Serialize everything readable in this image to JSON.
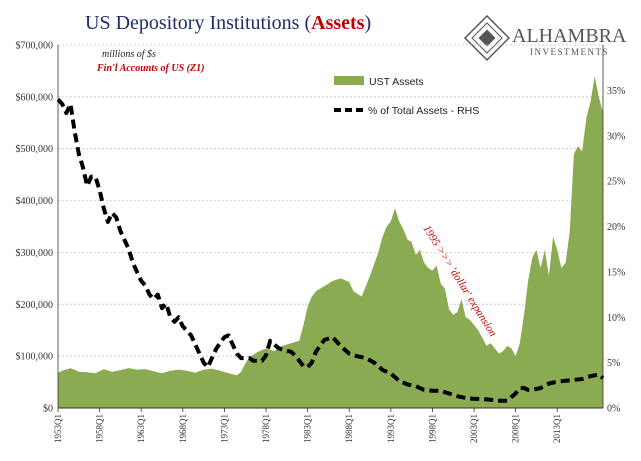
{
  "title": {
    "prefix": "US Depository Institutions (",
    "highlight": "Assets",
    "suffix": ")"
  },
  "brand": {
    "name": "ALHAMBRA",
    "sub": "INVESTMENTS"
  },
  "notes": {
    "units": "millions of $s",
    "source": "Fin'l Accounts of US (Z1)"
  },
  "annotation": "1995 >>> 'dollar' expansion",
  "colors": {
    "area": "#8bab52",
    "line": "#000000",
    "title": "#1f2d6b",
    "accent": "#c00000"
  },
  "chart_data": {
    "type": "area",
    "y_left": {
      "ticks": [
        "$0",
        "$100,000",
        "$200,000",
        "$300,000",
        "$400,000",
        "$500,000",
        "$600,000",
        "$700,000"
      ],
      "lim": [
        0,
        700000
      ]
    },
    "y_right": {
      "ticks": [
        "0%",
        "5%",
        "10%",
        "15%",
        "20%",
        "25%",
        "30%",
        "35%"
      ],
      "lim": [
        0,
        0.4
      ]
    },
    "x_ticks": [
      "1953Q1",
      "1958Q1",
      "1963Q1",
      "1968Q1",
      "1973Q1",
      "1978Q1",
      "1983Q1",
      "1988Q1",
      "1993Q1",
      "1998Q1",
      "2003Q1",
      "2008Q1",
      "2013Q1"
    ],
    "x_range": [
      1953.0,
      2018.5
    ],
    "grid": true,
    "legend_position": "top-right",
    "series": [
      {
        "name": "UST Assets",
        "axis": "left",
        "style": "area",
        "x": [
          1953.0,
          1953.5,
          1954.5,
          1955.5,
          1956.5,
          1957.5,
          1958.5,
          1959.5,
          1960.5,
          1961.5,
          1962.5,
          1963.5,
          1964.5,
          1965.5,
          1966.5,
          1967.5,
          1968.5,
          1969.5,
          1970.5,
          1971.5,
          1972.5,
          1973.5,
          1974.5,
          1975.0,
          1975.5,
          1976.0,
          1977.0,
          1978.0,
          1979.0,
          1980.0,
          1981.0,
          1982.0,
          1982.5,
          1983.0,
          1983.5,
          1984.0,
          1985.0,
          1986.0,
          1987.0,
          1988.0,
          1988.5,
          1989.5,
          1990.5,
          1991.5,
          1992.0,
          1992.5,
          1993.0,
          1993.5,
          1994.0,
          1994.5,
          1995.0,
          1995.5,
          1996.0,
          1996.5,
          1997.0,
          1997.5,
          1998.0,
          1998.5,
          1999.0,
          1999.5,
          2000.0,
          2000.5,
          2001.0,
          2001.5,
          2002.0,
          2002.5,
          2003.0,
          2003.5,
          2004.0,
          2004.5,
          2005.0,
          2005.5,
          2006.0,
          2006.5,
          2007.0,
          2007.5,
          2008.0,
          2008.5,
          2009.0,
          2009.5,
          2010.0,
          2010.5,
          2011.0,
          2011.5,
          2012.0,
          2012.5,
          2013.0,
          2013.5,
          2014.0,
          2014.5,
          2015.0,
          2015.5,
          2016.0,
          2016.5,
          2017.0,
          2017.5,
          2018.0,
          2018.5
        ],
        "values": [
          68000,
          72000,
          77000,
          70000,
          69000,
          67000,
          75000,
          70000,
          73000,
          77000,
          74000,
          75000,
          71000,
          67000,
          72000,
          74000,
          72000,
          68000,
          74000,
          76000,
          72000,
          67000,
          63000,
          70000,
          85000,
          98000,
          108000,
          115000,
          110000,
          120000,
          125000,
          130000,
          160000,
          195000,
          215000,
          225000,
          235000,
          245000,
          250000,
          243000,
          225000,
          215000,
          255000,
          300000,
          330000,
          350000,
          360000,
          385000,
          360000,
          345000,
          325000,
          320000,
          295000,
          305000,
          280000,
          270000,
          265000,
          275000,
          240000,
          230000,
          190000,
          180000,
          185000,
          210000,
          175000,
          170000,
          160000,
          150000,
          135000,
          120000,
          125000,
          115000,
          105000,
          110000,
          120000,
          115000,
          100000,
          125000,
          180000,
          245000,
          290000,
          305000,
          270000,
          305000,
          255000,
          330000,
          305000,
          270000,
          280000,
          340000,
          490000,
          505000,
          495000,
          560000,
          590000,
          640000,
          600000,
          570000
        ]
      },
      {
        "name": "% of Total Assets - RHS",
        "axis": "right",
        "style": "dashed",
        "x": [
          1953.0,
          1953.5,
          1954.0,
          1954.5,
          1955.0,
          1955.5,
          1956.0,
          1956.5,
          1957.0,
          1957.5,
          1958.0,
          1958.5,
          1959.0,
          1959.5,
          1960.0,
          1960.5,
          1961.0,
          1961.5,
          1962.0,
          1962.5,
          1963.0,
          1963.5,
          1964.0,
          1964.5,
          1965.0,
          1965.5,
          1966.0,
          1966.5,
          1967.0,
          1967.5,
          1968.0,
          1968.5,
          1969.0,
          1969.5,
          1970.0,
          1970.5,
          1971.0,
          1971.5,
          1972.0,
          1972.5,
          1973.0,
          1973.5,
          1974.0,
          1974.5,
          1975.0,
          1975.5,
          1976.0,
          1976.5,
          1977.0,
          1977.5,
          1978.0,
          1978.5,
          1979.0,
          1979.5,
          1980.0,
          1980.5,
          1981.0,
          1981.5,
          1982.0,
          1982.5,
          1983.0,
          1983.5,
          1984.0,
          1985.0,
          1986.0,
          1987.0,
          1988.0,
          1989.0,
          1990.0,
          1991.0,
          1992.0,
          1993.0,
          1994.0,
          1995.0,
          1996.0,
          1997.0,
          1998.0,
          1999.0,
          2000.0,
          2001.0,
          2002.0,
          2003.0,
          2004.0,
          2005.0,
          2006.0,
          2007.0,
          2008.0,
          2008.5,
          2009.0,
          2009.5,
          2010.0,
          2011.0,
          2012.0,
          2013.0,
          2014.0,
          2015.0,
          2016.0,
          2017.0,
          2018.0,
          2018.5
        ],
        "values": [
          0.34,
          0.335,
          0.325,
          0.335,
          0.305,
          0.28,
          0.265,
          0.245,
          0.255,
          0.255,
          0.24,
          0.22,
          0.205,
          0.215,
          0.21,
          0.195,
          0.185,
          0.175,
          0.16,
          0.15,
          0.14,
          0.135,
          0.125,
          0.12,
          0.125,
          0.11,
          0.115,
          0.1,
          0.095,
          0.1,
          0.09,
          0.085,
          0.08,
          0.07,
          0.06,
          0.05,
          0.045,
          0.055,
          0.065,
          0.072,
          0.078,
          0.08,
          0.07,
          0.06,
          0.055,
          0.055,
          0.055,
          0.052,
          0.052,
          0.052,
          0.058,
          0.074,
          0.07,
          0.066,
          0.064,
          0.063,
          0.062,
          0.058,
          0.052,
          0.046,
          0.045,
          0.05,
          0.062,
          0.075,
          0.078,
          0.068,
          0.06,
          0.057,
          0.055,
          0.05,
          0.042,
          0.038,
          0.03,
          0.026,
          0.024,
          0.02,
          0.019,
          0.019,
          0.016,
          0.013,
          0.011,
          0.01,
          0.01,
          0.009,
          0.008,
          0.008,
          0.016,
          0.022,
          0.022,
          0.02,
          0.02,
          0.022,
          0.027,
          0.029,
          0.03,
          0.031,
          0.032,
          0.035,
          0.037,
          0.033
        ]
      }
    ]
  }
}
